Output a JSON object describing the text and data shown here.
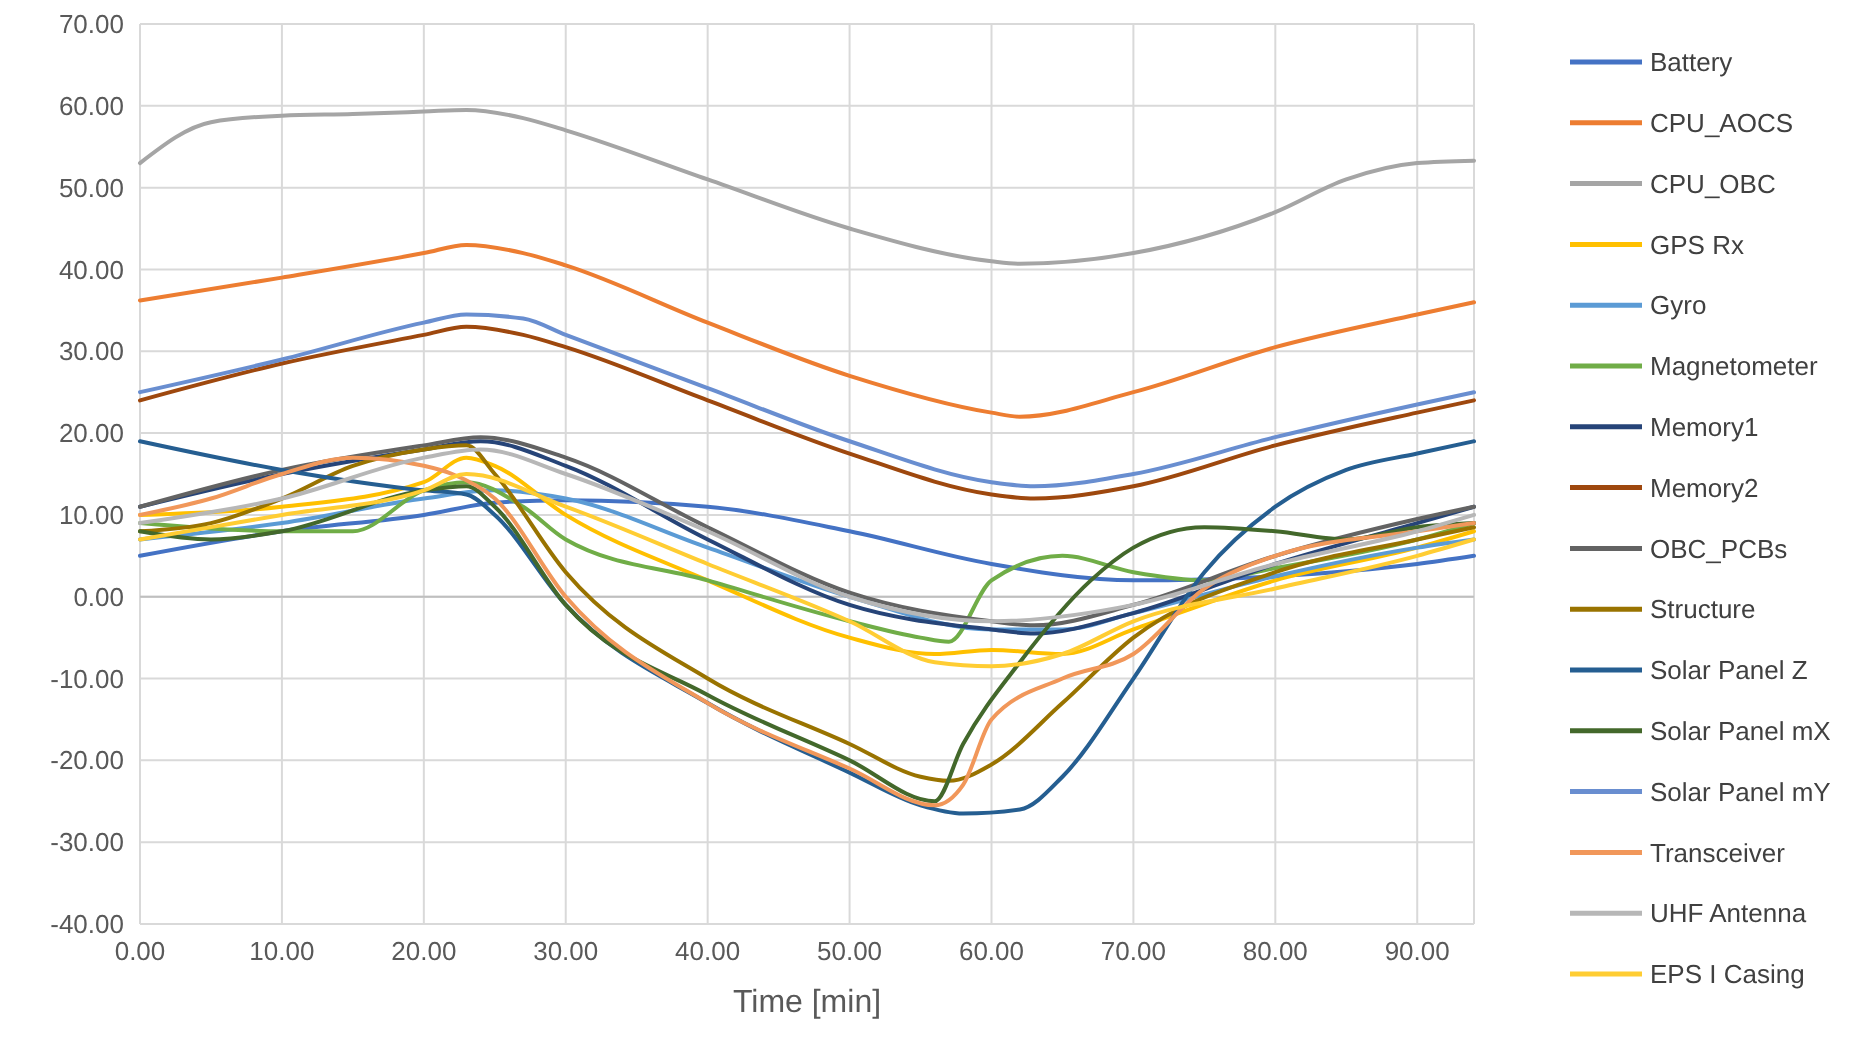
{
  "chart_data": {
    "type": "line",
    "xlabel": "Time [min]",
    "xlim": [
      0,
      94
    ],
    "ylim": [
      -40,
      70
    ],
    "xticks": [
      {
        "value": 0,
        "label": "0.00"
      },
      {
        "value": 10,
        "label": "10.00"
      },
      {
        "value": 20,
        "label": "20.00"
      },
      {
        "value": 30,
        "label": "30.00"
      },
      {
        "value": 40,
        "label": "40.00"
      },
      {
        "value": 50,
        "label": "50.00"
      },
      {
        "value": 60,
        "label": "60.00"
      },
      {
        "value": 70,
        "label": "70.00"
      },
      {
        "value": 80,
        "label": "80.00"
      },
      {
        "value": 90,
        "label": "90.00"
      }
    ],
    "yticks": [
      {
        "value": -40,
        "label": "-40.00"
      },
      {
        "value": -30,
        "label": "-30.00"
      },
      {
        "value": -20,
        "label": "-20.00"
      },
      {
        "value": -10,
        "label": "-10.00"
      },
      {
        "value": 0,
        "label": "0.00"
      },
      {
        "value": 10,
        "label": "10.00"
      },
      {
        "value": 20,
        "label": "20.00"
      },
      {
        "value": 30,
        "label": "30.00"
      },
      {
        "value": 40,
        "label": "40.00"
      },
      {
        "value": 50,
        "label": "50.00"
      },
      {
        "value": 60,
        "label": "60.00"
      },
      {
        "value": 70,
        "label": "70.00"
      }
    ],
    "grid": true,
    "legend": "right",
    "marker": "none",
    "line_style": "solid",
    "series": [
      {
        "name": "Battery",
        "color": "#4472c4",
        "x": [
          0,
          10,
          20,
          25,
          30,
          40,
          50,
          60,
          70,
          80,
          90,
          94
        ],
        "values": [
          5,
          8,
          10,
          11.5,
          11.8,
          11,
          8,
          4,
          2,
          2.5,
          4,
          5
        ]
      },
      {
        "name": "CPU_AOCS",
        "color": "#ed7d31",
        "x": [
          0,
          10,
          20,
          23,
          27,
          30,
          40,
          50,
          60,
          62,
          70,
          80,
          90,
          94
        ],
        "values": [
          36.2,
          39,
          42,
          43,
          42,
          40.5,
          33.5,
          27,
          22.5,
          22,
          25,
          30.5,
          34.5,
          36
        ]
      },
      {
        "name": "CPU_OBC",
        "color": "#a5a5a5",
        "x": [
          0,
          5,
          10,
          15,
          20,
          23,
          27,
          30,
          40,
          50,
          60,
          62,
          70,
          80,
          85,
          90,
          94
        ],
        "values": [
          53,
          58,
          58.8,
          59,
          59.3,
          59.5,
          58.5,
          57,
          51,
          45,
          41,
          40.7,
          42,
          47,
          51,
          53,
          53.3
        ]
      },
      {
        "name": "GPS Rx",
        "color": "#ffc000",
        "x": [
          0,
          10,
          20,
          23,
          25,
          30,
          40,
          50,
          56,
          60,
          65,
          70,
          80,
          90,
          94
        ],
        "values": [
          10,
          11,
          14,
          17,
          16,
          10,
          2,
          -5,
          -7,
          -6.5,
          -7,
          -4,
          2,
          6,
          8
        ]
      },
      {
        "name": "Gyro",
        "color": "#5b9bd5",
        "x": [
          0,
          10,
          20,
          25,
          30,
          40,
          50,
          60,
          65,
          70,
          80,
          90,
          94
        ],
        "values": [
          7,
          9,
          12,
          13,
          12,
          6,
          0,
          -4,
          -4,
          -2,
          2.5,
          6,
          7
        ]
      },
      {
        "name": "Magnetometer",
        "color": "#70ad47",
        "x": [
          0,
          10,
          15,
          20,
          23,
          27,
          30,
          40,
          50,
          55,
          57,
          60,
          65,
          70,
          75,
          80,
          90,
          94
        ],
        "values": [
          9,
          8,
          8,
          13,
          14,
          11,
          7,
          2,
          -3,
          -5,
          -5.5,
          2,
          5,
          3,
          2,
          3.5,
          7,
          9
        ]
      },
      {
        "name": "Memory1",
        "color": "#264478",
        "x": [
          0,
          10,
          20,
          24,
          30,
          40,
          50,
          60,
          63,
          70,
          80,
          90,
          94
        ],
        "values": [
          11,
          15,
          18,
          19,
          16,
          7,
          -1,
          -4,
          -4.5,
          -2,
          4,
          9,
          11
        ]
      },
      {
        "name": "Memory2",
        "color": "#9e480e",
        "x": [
          0,
          10,
          20,
          23,
          27,
          30,
          40,
          50,
          60,
          63,
          70,
          80,
          90,
          94
        ],
        "values": [
          24,
          28.5,
          32,
          33,
          32,
          30.5,
          24,
          17.5,
          12.5,
          12,
          13.5,
          18.5,
          22.5,
          24
        ]
      },
      {
        "name": "OBC_PCBs",
        "color": "#636363",
        "x": [
          0,
          10,
          20,
          24,
          30,
          40,
          50,
          60,
          63,
          70,
          80,
          90,
          94
        ],
        "values": [
          11,
          15.5,
          18.5,
          19.5,
          17,
          8.5,
          0.5,
          -3,
          -3.5,
          -1,
          5,
          9.5,
          11
        ]
      },
      {
        "name": "Structure",
        "color": "#997300",
        "x": [
          0,
          5,
          10,
          15,
          20,
          23,
          25,
          30,
          40,
          50,
          55,
          57,
          60,
          65,
          70,
          80,
          90,
          94
        ],
        "values": [
          8,
          9,
          12,
          16,
          18,
          18.5,
          15,
          3,
          -10,
          -18,
          -22,
          -22.5,
          -20.5,
          -13,
          -5,
          3,
          7,
          8.5
        ]
      },
      {
        "name": "Solar Panel Z",
        "color": "#255e91",
        "x": [
          0,
          10,
          20,
          23,
          25,
          30,
          40,
          50,
          55,
          58,
          62,
          65,
          70,
          75,
          80,
          85,
          90,
          94
        ],
        "values": [
          19,
          15.5,
          13,
          12.5,
          10,
          -1,
          -13,
          -21.5,
          -25.5,
          -26.5,
          -26,
          -22,
          -10,
          3,
          11,
          15.5,
          17.5,
          19
        ]
      },
      {
        "name": "Solar Panel mX",
        "color": "#43682b",
        "x": [
          0,
          5,
          10,
          20,
          23,
          25,
          30,
          40,
          50,
          56,
          58,
          62,
          67,
          70,
          75,
          80,
          85,
          90,
          94
        ],
        "values": [
          8,
          7,
          8,
          13,
          13.5,
          11,
          -1,
          -12,
          -20,
          -25,
          -18,
          -8,
          2,
          6,
          8.5,
          8,
          7,
          8.5,
          9
        ]
      },
      {
        "name": "Solar Panel mY",
        "color": "#698ed0",
        "x": [
          0,
          10,
          20,
          23,
          27,
          30,
          40,
          50,
          60,
          63,
          70,
          80,
          90,
          94
        ],
        "values": [
          25,
          29,
          33.5,
          34.5,
          34,
          32,
          25.5,
          19,
          14,
          13.5,
          15,
          19.5,
          23.5,
          25
        ]
      },
      {
        "name": "Transceiver",
        "color": "#f1975a",
        "x": [
          0,
          5,
          10,
          15,
          20,
          22,
          25,
          30,
          40,
          50,
          56,
          58,
          60,
          65,
          70,
          75,
          80,
          90,
          94
        ],
        "values": [
          10,
          12,
          15,
          17,
          16,
          15,
          12,
          0,
          -13,
          -21,
          -25.5,
          -23,
          -15,
          -10,
          -7,
          1,
          5,
          8,
          9
        ]
      },
      {
        "name": "UHF Antenna",
        "color": "#b7b7b7",
        "x": [
          0,
          10,
          20,
          24,
          30,
          40,
          50,
          60,
          70,
          80,
          90,
          94
        ],
        "values": [
          9,
          12,
          17,
          18,
          15,
          8,
          0,
          -3,
          -1,
          4,
          8,
          10
        ]
      },
      {
        "name": "EPS I Casing",
        "color": "#ffcd33",
        "x": [
          0,
          10,
          20,
          23,
          30,
          40,
          50,
          56,
          60,
          65,
          70,
          80,
          90,
          94
        ],
        "values": [
          7,
          10,
          13,
          15,
          11,
          4,
          -3,
          -8,
          -8.5,
          -7,
          -3,
          1,
          5,
          7
        ]
      }
    ]
  }
}
